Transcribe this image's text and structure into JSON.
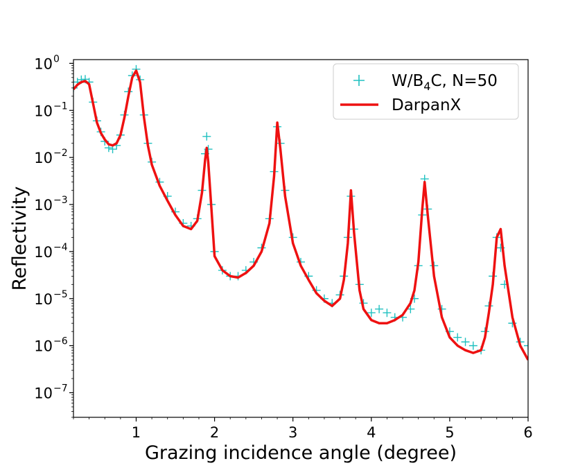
{
  "chart_data": {
    "type": "line",
    "xlabel": "Grazing incidence angle (degree)",
    "ylabel": "Reflectivity",
    "xlim": [
      0.2,
      6
    ],
    "ylim": [
      3e-08,
      1.2
    ],
    "yscale": "log",
    "grid": false,
    "legend_position": "top-right",
    "x_ticks": [
      1,
      2,
      3,
      4,
      5,
      6
    ],
    "x_tick_labels": [
      "1",
      "2",
      "3",
      "4",
      "5",
      "6"
    ],
    "y_ticks": [
      1e-07,
      1e-06,
      1e-05,
      0.0001,
      0.001,
      0.01,
      0.1,
      1
    ],
    "y_tick_exponents": [
      "−7",
      "−6",
      "−5",
      "−4",
      "−3",
      "−2",
      "−1",
      "0"
    ],
    "y_tick_base": "10",
    "series": [
      {
        "name": "W/B4C, N=50",
        "name_prefix": "W/B",
        "name_sub": "4",
        "name_suffix": "C, N=50",
        "style": "markers",
        "marker": "plus",
        "color": "#20c0c0",
        "x": [
          0.2,
          0.25,
          0.3,
          0.35,
          0.4,
          0.45,
          0.5,
          0.55,
          0.6,
          0.65,
          0.7,
          0.75,
          0.8,
          0.85,
          0.9,
          0.95,
          1.0,
          1.05,
          1.1,
          1.15,
          1.2,
          1.3,
          1.4,
          1.5,
          1.6,
          1.7,
          1.78,
          1.84,
          1.88,
          1.9,
          1.92,
          1.96,
          2.0,
          2.1,
          2.2,
          2.3,
          2.4,
          2.5,
          2.6,
          2.7,
          2.76,
          2.8,
          2.84,
          2.9,
          3.0,
          3.1,
          3.2,
          3.3,
          3.4,
          3.5,
          3.6,
          3.65,
          3.7,
          3.74,
          3.78,
          3.85,
          3.9,
          4.0,
          4.1,
          4.2,
          4.3,
          4.4,
          4.5,
          4.55,
          4.6,
          4.65,
          4.68,
          4.72,
          4.8,
          4.9,
          5.0,
          5.1,
          5.2,
          5.3,
          5.4,
          5.45,
          5.5,
          5.55,
          5.6,
          5.65,
          5.7,
          5.8,
          5.9,
          6.0
        ],
        "y": [
          0.3,
          0.4,
          0.45,
          0.46,
          0.4,
          0.15,
          0.06,
          0.035,
          0.022,
          0.016,
          0.015,
          0.018,
          0.03,
          0.08,
          0.25,
          0.55,
          0.75,
          0.45,
          0.08,
          0.02,
          0.008,
          0.003,
          0.0015,
          0.0007,
          0.0004,
          0.00035,
          0.0005,
          0.002,
          0.012,
          0.028,
          0.015,
          0.001,
          0.0001,
          4e-05,
          3e-05,
          3e-05,
          4e-05,
          6e-05,
          0.00012,
          0.0005,
          0.005,
          0.045,
          0.02,
          0.002,
          0.0002,
          6e-05,
          3e-05,
          1.5e-05,
          1e-05,
          8e-06,
          1.2e-05,
          3e-05,
          0.0002,
          0.0015,
          0.0003,
          2e-05,
          8e-06,
          5e-06,
          6e-06,
          5e-06,
          4e-06,
          4e-06,
          6e-06,
          1e-05,
          5e-05,
          0.0006,
          0.0035,
          0.0008,
          5e-05,
          6e-06,
          2e-06,
          1.5e-06,
          1.2e-06,
          1e-06,
          8e-07,
          2e-06,
          7e-06,
          3e-05,
          0.0002,
          0.00012,
          2e-05,
          3e-06,
          1.2e-06,
          1e-06
        ]
      },
      {
        "name": "DarpanX",
        "style": "line",
        "color": "#ee1111",
        "x": [
          0.2,
          0.25,
          0.3,
          0.35,
          0.4,
          0.45,
          0.5,
          0.55,
          0.6,
          0.65,
          0.7,
          0.75,
          0.8,
          0.85,
          0.9,
          0.95,
          1.0,
          1.05,
          1.1,
          1.15,
          1.2,
          1.3,
          1.4,
          1.5,
          1.6,
          1.7,
          1.78,
          1.84,
          1.88,
          1.9,
          1.92,
          1.96,
          2.0,
          2.1,
          2.2,
          2.3,
          2.4,
          2.5,
          2.6,
          2.7,
          2.76,
          2.8,
          2.84,
          2.9,
          3.0,
          3.1,
          3.2,
          3.3,
          3.4,
          3.5,
          3.6,
          3.65,
          3.7,
          3.74,
          3.78,
          3.85,
          3.9,
          4.0,
          4.1,
          4.2,
          4.3,
          4.4,
          4.5,
          4.55,
          4.6,
          4.65,
          4.68,
          4.72,
          4.8,
          4.9,
          5.0,
          5.1,
          5.2,
          5.3,
          5.4,
          5.45,
          5.5,
          5.55,
          5.6,
          5.65,
          5.7,
          5.8,
          5.9,
          6.0
        ],
        "y": [
          0.28,
          0.35,
          0.4,
          0.42,
          0.36,
          0.14,
          0.055,
          0.033,
          0.024,
          0.019,
          0.018,
          0.02,
          0.03,
          0.07,
          0.2,
          0.5,
          0.7,
          0.4,
          0.07,
          0.018,
          0.007,
          0.0025,
          0.0012,
          0.0006,
          0.00035,
          0.0003,
          0.00045,
          0.0018,
          0.009,
          0.016,
          0.008,
          0.0008,
          8e-05,
          4e-05,
          3e-05,
          2.8e-05,
          3.5e-05,
          5e-05,
          0.0001,
          0.0004,
          0.004,
          0.055,
          0.015,
          0.0015,
          0.00015,
          5e-05,
          2.5e-05,
          1.3e-05,
          9e-06,
          7e-06,
          1e-05,
          2.5e-05,
          0.00015,
          0.002,
          0.00025,
          1.5e-05,
          6e-06,
          3.5e-06,
          3e-06,
          3e-06,
          3.5e-06,
          4.5e-06,
          8e-06,
          1.5e-05,
          6e-05,
          0.0008,
          0.003,
          0.0006,
          3e-05,
          4e-06,
          1.5e-06,
          1e-06,
          8e-07,
          7e-07,
          8e-07,
          1.5e-06,
          5e-06,
          2e-05,
          0.0002,
          0.0003,
          5e-05,
          4e-06,
          1e-06,
          5e-07
        ]
      }
    ]
  }
}
